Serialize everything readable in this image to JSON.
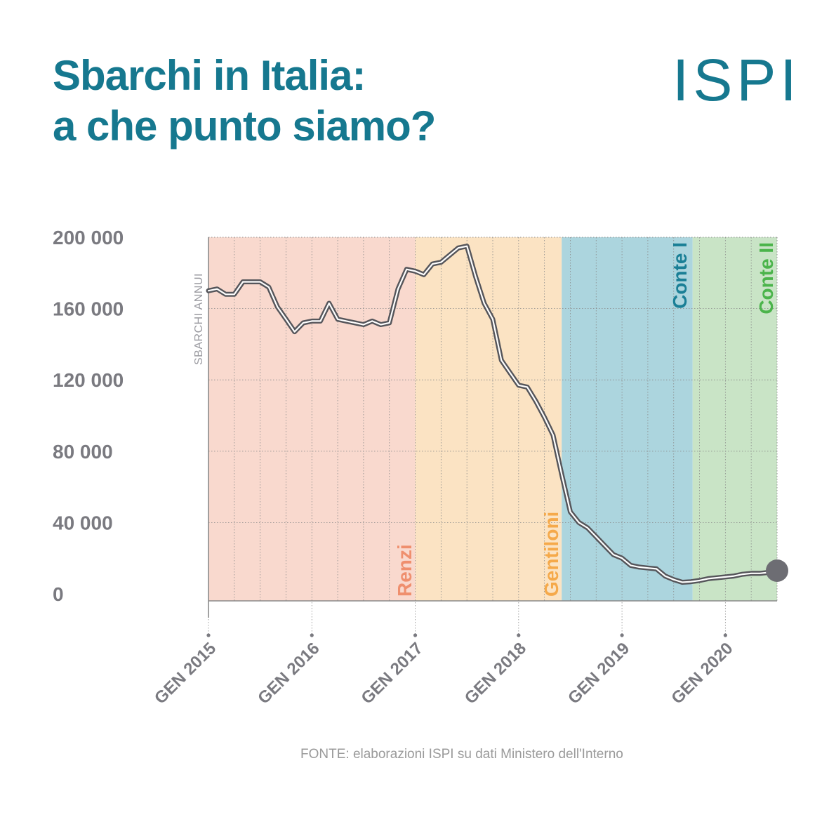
{
  "title": {
    "line1": "Sbarchi in Italia:",
    "line2": "a che punto siamo?"
  },
  "logo": {
    "text": "ISPI"
  },
  "source": "FONTE: elaborazioni ISPI su dati Ministero dell'Interno",
  "colors": {
    "title": "#16788f",
    "axis_text": "#7a7a80",
    "grid": "#8a8a8a",
    "line_outer": "#55555a",
    "line_inner": "#ffffff",
    "marker": "#6d6d73"
  },
  "chart_data": {
    "type": "line",
    "title": "Sbarchi in Italia: a che punto siamo?",
    "ylabel": "SBARCHI ANNUI",
    "xlabel": "",
    "ylim": [
      0,
      200000
    ],
    "yticks": [
      0,
      40000,
      80000,
      120000,
      160000,
      200000
    ],
    "ytick_labels": [
      "0",
      "40 000",
      "80 000",
      "120 000",
      "160 000",
      "200 000"
    ],
    "xlim": [
      0,
      66
    ],
    "xticks": [
      0,
      12,
      24,
      36,
      48,
      60
    ],
    "xtick_labels": [
      "GEN 2015",
      "GEN 2016",
      "GEN 2017",
      "GEN 2018",
      "GEN 2019",
      "GEN 2020"
    ],
    "x_unit": "months since GEN 2015",
    "governments": [
      {
        "name": "Renzi",
        "start": 0,
        "end": 24,
        "fill": "#f9d9ce",
        "label_color": "#ef8f6e"
      },
      {
        "name": "Gentiloni",
        "start": 24,
        "end": 41,
        "fill": "#fbe3c3",
        "label_color": "#f5a94a"
      },
      {
        "name": "Conte I",
        "start": 41,
        "end": 56.2,
        "fill": "#acd5de",
        "label_color": "#1a7f96"
      },
      {
        "name": "Conte II",
        "start": 56.2,
        "end": 66,
        "fill": "#c9e4c6",
        "label_color": "#4bb44b"
      }
    ],
    "series": [
      {
        "name": "Sbarchi annui",
        "x": [
          0,
          1,
          2,
          3,
          4,
          5,
          6,
          7,
          8,
          9,
          10,
          11,
          12,
          13,
          14,
          15,
          16,
          17,
          18,
          19,
          20,
          21,
          22,
          23,
          24,
          25,
          26,
          27,
          28,
          29,
          30,
          31,
          32,
          33,
          34,
          35,
          36,
          37,
          38,
          39,
          40,
          41,
          42,
          43,
          44,
          45,
          46,
          47,
          48,
          49,
          50,
          51,
          52,
          53,
          54,
          55,
          56,
          57,
          58,
          59,
          60,
          61,
          62,
          63,
          64,
          65,
          66
        ],
        "values": [
          170000,
          171000,
          168000,
          168000,
          175000,
          175000,
          175000,
          172000,
          161000,
          154000,
          147000,
          152000,
          153000,
          153000,
          163000,
          154000,
          153000,
          152000,
          151000,
          153000,
          151000,
          152000,
          171000,
          182000,
          181000,
          179000,
          185000,
          186000,
          190000,
          194000,
          195000,
          178000,
          163000,
          154000,
          131000,
          124000,
          117000,
          116000,
          108000,
          99000,
          89000,
          67000,
          46000,
          40000,
          37000,
          32000,
          27000,
          22000,
          20000,
          16000,
          15000,
          14500,
          14000,
          10000,
          8000,
          6500,
          6800,
          7500,
          8500,
          9000,
          9500,
          10000,
          11000,
          11500,
          11500,
          12000,
          13000
        ]
      }
    ]
  }
}
